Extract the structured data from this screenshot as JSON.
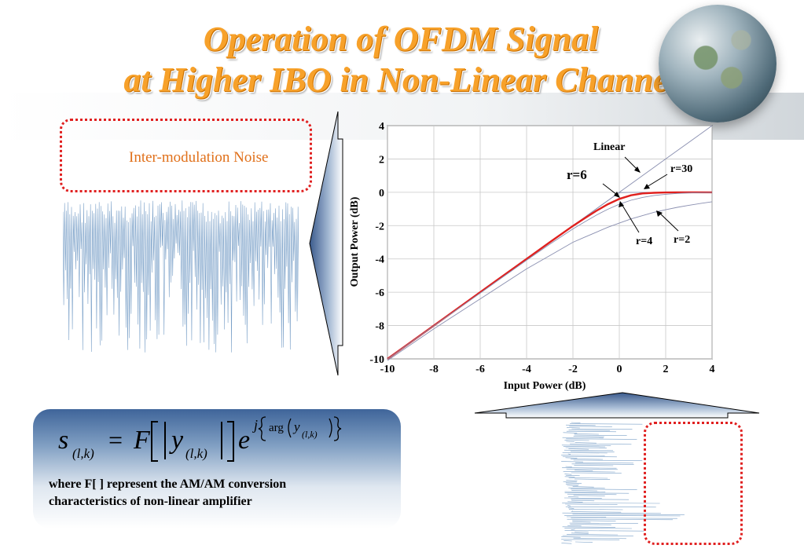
{
  "title": {
    "line1": "Operation of OFDM Signal",
    "line2": "at Higher IBO in Non-Linear Channel"
  },
  "noise_label": "Inter-modulation Noise",
  "caption": {
    "line1": "where F[ ]  represent the AM/AM conversion",
    "line2": "characteristics of non-linear amplifier"
  },
  "formula": {
    "lhs": "s",
    "lhs_sub": "(l,k)",
    "func": "F",
    "arg": "y",
    "arg_sub": "(l,k)",
    "base": "e",
    "exp_j": "j",
    "exp_arg": "arg",
    "exp_y": "y",
    "exp_sub": "(l,k)"
  },
  "colors": {
    "title": "#f7a12a",
    "highlight_curve": "#e0201e",
    "curves": "#8a8fb0",
    "dotted_box": "#e02020",
    "panel": "#3f659a"
  },
  "chart_data": {
    "type": "line",
    "xlabel": "Input Power (dB)",
    "ylabel": "Output Power (dB)",
    "xlim": [
      -10,
      4
    ],
    "ylim": [
      -10,
      4
    ],
    "xticks": [
      -10,
      -8,
      -6,
      -4,
      -2,
      0,
      2,
      4
    ],
    "yticks": [
      -10,
      -8,
      -6,
      -4,
      -2,
      0,
      2,
      4
    ],
    "grid": true,
    "x": [
      -10,
      -8,
      -6,
      -4,
      -3,
      -2,
      -1.5,
      -1,
      -0.5,
      0,
      0.5,
      1,
      1.5,
      2,
      2.5,
      3,
      3.5,
      4
    ],
    "series": [
      {
        "name": "Linear",
        "values": [
          -10,
          -8,
          -6,
          -4,
          -3,
          -2,
          -1.5,
          -1,
          -0.5,
          0,
          0.5,
          1,
          1.5,
          2,
          2.5,
          3,
          3.5,
          4
        ]
      },
      {
        "name": "r=30",
        "values": [
          -10,
          -8,
          -6,
          -4,
          -3,
          -2,
          -1.5,
          -1,
          -0.5,
          -0.02,
          0,
          0,
          0,
          0,
          0,
          0,
          0,
          0
        ]
      },
      {
        "name": "r=6",
        "values": [
          -10,
          -8,
          -6,
          -4,
          -3,
          -2.02,
          -1.56,
          -1.12,
          -0.72,
          -0.4,
          -0.18,
          -0.07,
          -0.03,
          -0.01,
          0,
          0,
          0,
          0
        ]
      },
      {
        "name": "r=4",
        "values": [
          -10.01,
          -8.02,
          -6.05,
          -4.08,
          -3.12,
          -2.2,
          -1.78,
          -1.38,
          -1.02,
          -0.72,
          -0.48,
          -0.31,
          -0.19,
          -0.12,
          -0.07,
          -0.04,
          -0.02,
          -0.01
        ]
      },
      {
        "name": "r=2",
        "values": [
          -10.1,
          -8.2,
          -6.4,
          -4.6,
          -3.8,
          -3.0,
          -2.7,
          -2.4,
          -2.1,
          -1.85,
          -1.6,
          -1.4,
          -1.2,
          -1.05,
          -0.9,
          -0.78,
          -0.67,
          -0.57
        ]
      }
    ],
    "highlight": "r=6",
    "annotations": [
      "Linear",
      "r=30",
      "r=6",
      "r=4",
      "r=2"
    ]
  }
}
